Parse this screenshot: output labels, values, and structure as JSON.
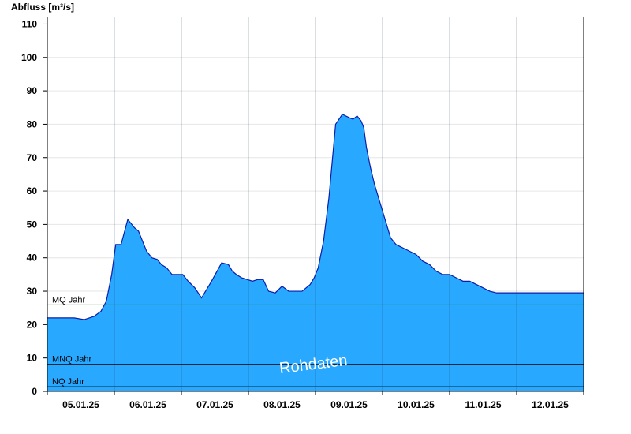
{
  "chart_data": {
    "type": "area",
    "ylabel": "Abfluss [m³/s]",
    "xlabel": "",
    "ylim": [
      0,
      112
    ],
    "y_ticks": [
      0,
      10,
      20,
      30,
      40,
      50,
      60,
      70,
      80,
      90,
      100,
      110
    ],
    "x_range": [
      0,
      8
    ],
    "x_tick_labels": [
      "05.01.25",
      "06.01.25",
      "07.01.25",
      "08.01.25",
      "09.01.25",
      "10.01.25",
      "11.01.25",
      "12.01.25"
    ],
    "grid": true,
    "series": [
      {
        "fill_color": "#29a8ff",
        "line_color": "#0a1fa8",
        "x": [
          0.0,
          0.2,
          0.4,
          0.55,
          0.7,
          0.8,
          0.88,
          0.96,
          1.02,
          1.1,
          1.2,
          1.3,
          1.36,
          1.42,
          1.48,
          1.56,
          1.64,
          1.7,
          1.78,
          1.86,
          1.94,
          2.02,
          2.1,
          2.2,
          2.3,
          2.45,
          2.6,
          2.7,
          2.76,
          2.82,
          2.9,
          2.98,
          3.06,
          3.14,
          3.22,
          3.3,
          3.4,
          3.5,
          3.6,
          3.7,
          3.76,
          3.8,
          3.86,
          3.92,
          3.98,
          4.04,
          4.12,
          4.2,
          4.3,
          4.4,
          4.5,
          4.56,
          4.62,
          4.68,
          4.72,
          4.76,
          4.82,
          4.88,
          4.94,
          5.0,
          5.06,
          5.12,
          5.2,
          5.3,
          5.4,
          5.5,
          5.6,
          5.7,
          5.8,
          5.9,
          6.0,
          6.1,
          6.2,
          6.3,
          6.4,
          6.5,
          6.6,
          6.7,
          6.8,
          6.9,
          7.0,
          7.2,
          7.4,
          7.6,
          7.8,
          8.0
        ],
        "y": [
          22,
          22,
          22,
          21.5,
          22.5,
          24,
          27,
          35,
          44,
          44,
          51.5,
          49,
          48,
          45,
          42,
          40,
          39.5,
          38,
          37,
          35,
          35,
          35,
          33,
          31,
          28,
          33,
          38.5,
          38,
          36,
          35,
          34,
          33.5,
          33,
          33.5,
          33.5,
          30,
          29.5,
          31.5,
          30,
          30,
          30,
          30,
          31,
          32,
          34,
          37,
          45,
          58,
          80,
          83,
          82,
          81.5,
          82.5,
          81,
          79,
          73,
          67,
          62,
          58,
          54,
          50,
          46,
          44,
          43,
          42,
          41,
          39,
          38,
          36,
          35,
          35,
          34,
          33,
          33,
          32,
          31,
          30,
          29.5,
          29.5,
          29.5,
          29.5,
          29.5,
          29.5,
          29.5,
          29.5,
          29.5
        ]
      }
    ],
    "reference_lines": [
      {
        "label": "MQ Jahr",
        "value": 25.9,
        "color": "#228b22"
      },
      {
        "label": "MNQ Jahr",
        "value": 8.1,
        "color": "#000000"
      },
      {
        "label": "NQ Jahr",
        "value": 1.4,
        "color": "#000000"
      }
    ],
    "watermark": "Rohdaten"
  }
}
